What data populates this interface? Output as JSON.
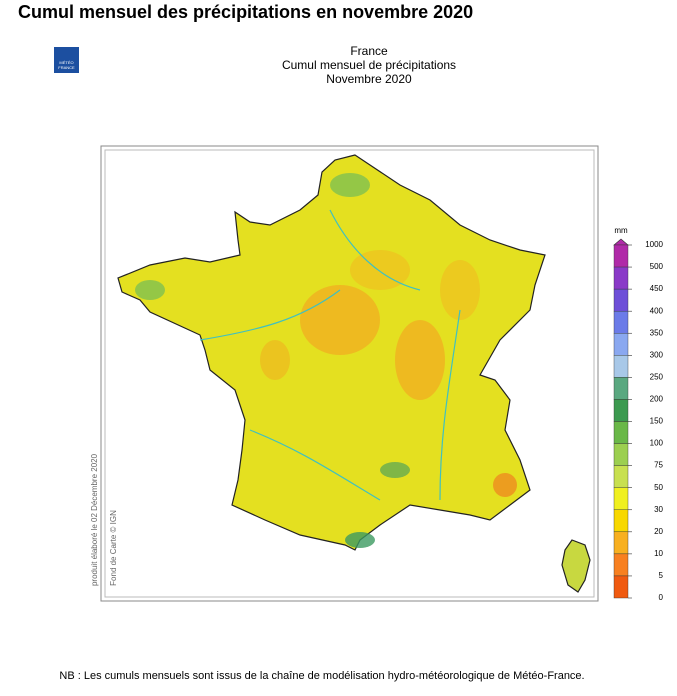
{
  "heading": "Cumul mensuel des précipitations en novembre 2020",
  "logo": {
    "line1": "MÉTÉO",
    "line2": "FRANCE"
  },
  "map": {
    "title": [
      "France",
      "Cumul mensuel de précipitations",
      "Novembre 2020"
    ],
    "credits": [
      "produit élaboré le 02 Décembre 2020",
      "Fond de Carte © IGN"
    ]
  },
  "legend": {
    "unit": "mm",
    "ticks": [
      1000,
      500,
      450,
      400,
      350,
      300,
      250,
      200,
      150,
      100,
      75,
      50,
      30,
      20,
      10,
      5,
      0
    ],
    "colors": [
      "#b02aa8",
      "#8a3ac8",
      "#6e4fd8",
      "#6b7be8",
      "#8aa8f0",
      "#a8c8e8",
      "#5aa880",
      "#3c9a50",
      "#6ab848",
      "#9ccf50",
      "#c8e050",
      "#f0f020",
      "#f8d800",
      "#f8b020",
      "#f88020",
      "#f05a10"
    ]
  },
  "note": "NB : Les cumuls mensuels sont issus de la chaîne de modélisation hydro-météorologique de Météo-France."
}
